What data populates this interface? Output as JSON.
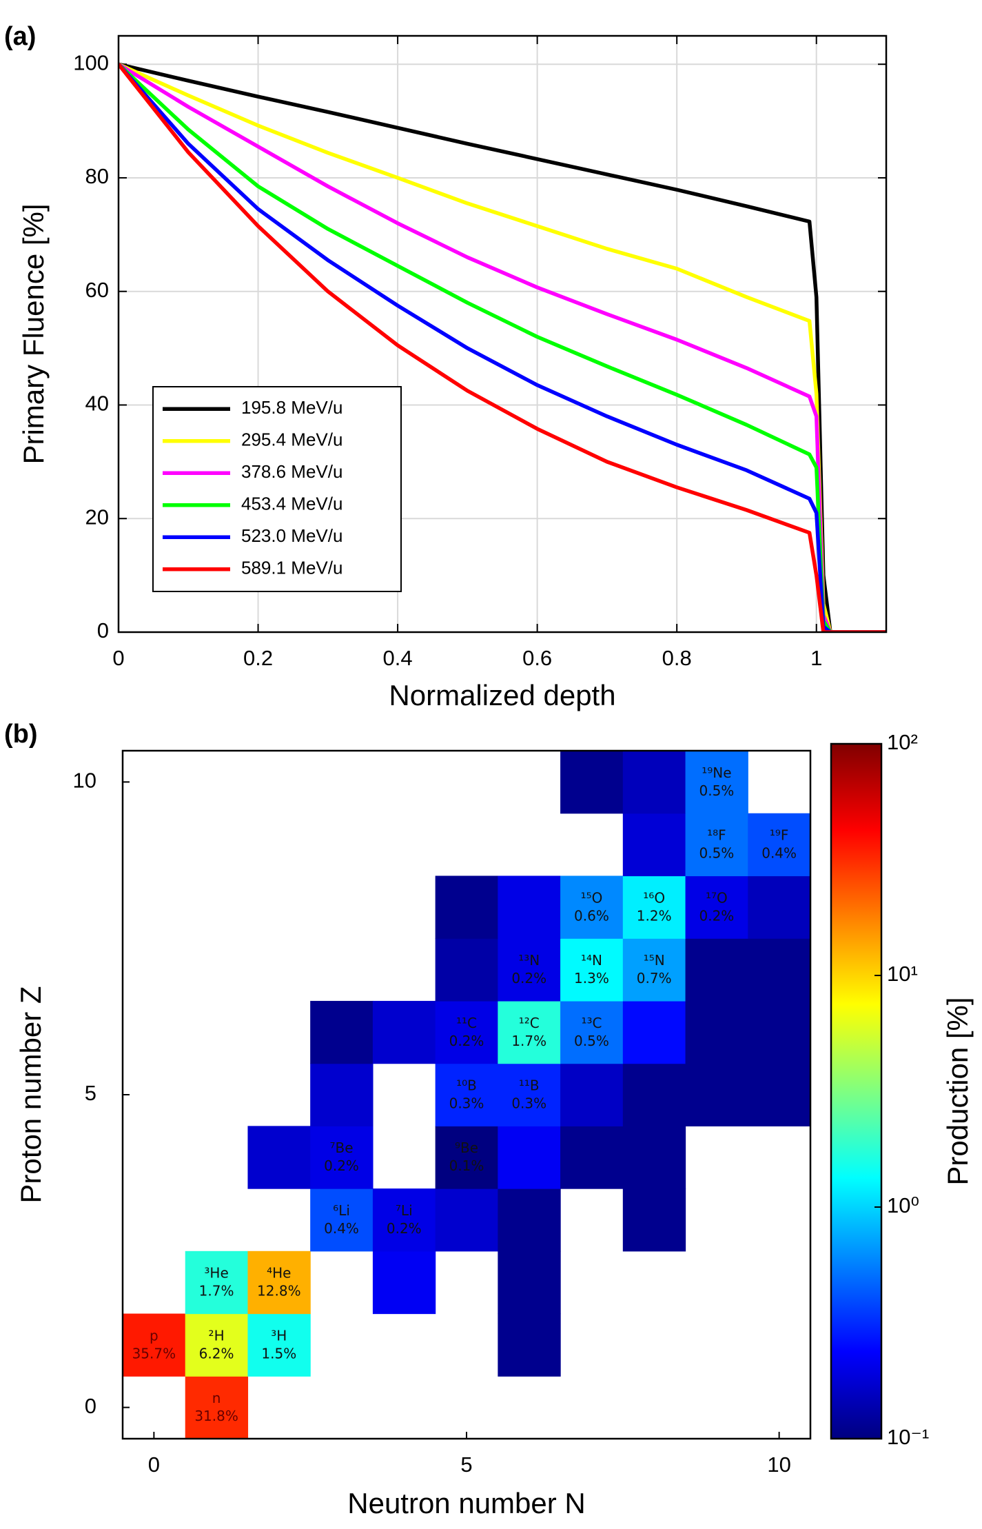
{
  "chart_data": [
    {
      "type": "line",
      "panel_label": "(a)",
      "x_label": "Normalized depth",
      "y_label": "Primary Fluence [%]",
      "x": [
        0,
        0.1,
        0.2,
        0.3,
        0.4,
        0.5,
        0.6,
        0.7,
        0.8,
        0.9,
        0.99,
        1.0,
        1.01,
        1.02,
        1.1
      ],
      "series": [
        {
          "name": "195.8 MeV/u",
          "color": "#000000",
          "values": [
            100,
            97.1,
            94.3,
            91.6,
            88.8,
            86,
            83.3,
            80.6,
            77.9,
            75,
            72.3,
            59,
            10,
            0,
            0
          ]
        },
        {
          "name": "295.4 MeV/u",
          "color": "#ffff00",
          "values": [
            100,
            94.5,
            89.2,
            84.4,
            80,
            75.5,
            71.5,
            67.5,
            64,
            59,
            54.8,
            42,
            5,
            0,
            0
          ]
        },
        {
          "name": "378.6 MeV/u",
          "color": "#ff00ff",
          "values": [
            100,
            92.5,
            85.5,
            78.5,
            72,
            66,
            60.7,
            56,
            51.5,
            46.5,
            41.5,
            38,
            3,
            0,
            0
          ]
        },
        {
          "name": "453.4 MeV/u",
          "color": "#00ff00",
          "values": [
            100,
            88.5,
            78.5,
            71,
            64.5,
            58,
            52,
            46.8,
            41.8,
            36.5,
            31.3,
            29,
            2,
            0,
            0
          ]
        },
        {
          "name": "523.0 MeV/u",
          "color": "#0000ff",
          "values": [
            100,
            86,
            74.5,
            65.5,
            57.5,
            50,
            43.5,
            38,
            33,
            28.5,
            23.5,
            21,
            1,
            0,
            0
          ]
        },
        {
          "name": "589.1 MeV/u",
          "color": "#ff0000",
          "values": [
            100,
            84.5,
            71.5,
            60,
            50.5,
            42.5,
            35.8,
            30,
            25.5,
            21.5,
            17.5,
            10,
            0,
            0,
            0
          ]
        }
      ],
      "xlim": [
        0,
        1.1
      ],
      "xticks": [
        0,
        0.2,
        0.4,
        0.6,
        0.8,
        1
      ],
      "ylim": [
        0,
        105
      ],
      "yticks": [
        0,
        20,
        40,
        60,
        80,
        100
      ],
      "grid": true,
      "legend": "lower left"
    },
    {
      "type": "heatmap",
      "panel_label": "(b)",
      "x_label": "Neutron number N",
      "y_label": "Proton number Z",
      "colorbar_label": "Production [%]",
      "colormap": "jet",
      "log_color": true,
      "clim": [
        0.1,
        100
      ],
      "cticks": [
        {
          "value": 0.1,
          "label": "10⁻¹"
        },
        {
          "value": 1,
          "label": "10⁰"
        },
        {
          "value": 10,
          "label": "10¹"
        },
        {
          "value": 100,
          "label": "10²"
        }
      ],
      "xlim": [
        -0.5,
        10.5
      ],
      "xticks": [
        0,
        5,
        10
      ],
      "ylim": [
        -0.5,
        10.5
      ],
      "yticks": [
        0,
        5,
        10
      ],
      "cells": [
        {
          "n": 1,
          "z": 0,
          "value": 31.8,
          "nuclide": "n",
          "value_label": "31.8%"
        },
        {
          "n": 0,
          "z": 1,
          "value": 35.7,
          "nuclide": "p",
          "value_label": "35.7%"
        },
        {
          "n": 1,
          "z": 1,
          "value": 6.2,
          "nuclide": "²H",
          "value_label": "6.2%"
        },
        {
          "n": 2,
          "z": 1,
          "value": 1.5,
          "nuclide": "³H",
          "value_label": "1.5%"
        },
        {
          "n": 6,
          "z": 1,
          "value": 0.11
        },
        {
          "n": 1,
          "z": 2,
          "value": 1.7,
          "nuclide": "³He",
          "value_label": "1.7%"
        },
        {
          "n": 2,
          "z": 2,
          "value": 12.8,
          "nuclide": "⁴He",
          "value_label": "12.8%"
        },
        {
          "n": 4,
          "z": 2,
          "value": 0.22
        },
        {
          "n": 6,
          "z": 2,
          "value": 0.11
        },
        {
          "n": 3,
          "z": 3,
          "value": 0.4,
          "nuclide": "⁶Li",
          "value_label": "0.4%"
        },
        {
          "n": 4,
          "z": 3,
          "value": 0.2,
          "nuclide": "⁷Li",
          "value_label": "0.2%"
        },
        {
          "n": 5,
          "z": 3,
          "value": 0.17
        },
        {
          "n": 6,
          "z": 3,
          "value": 0.11
        },
        {
          "n": 8,
          "z": 3,
          "value": 0.11
        },
        {
          "n": 2,
          "z": 4,
          "value": 0.17
        },
        {
          "n": 3,
          "z": 4,
          "value": 0.2,
          "nuclide": "⁷Be",
          "value_label": "0.2%"
        },
        {
          "n": 5,
          "z": 4,
          "value": 0.1,
          "nuclide": "⁹Be",
          "value_label": "0.1%"
        },
        {
          "n": 6,
          "z": 4,
          "value": 0.22
        },
        {
          "n": 7,
          "z": 4,
          "value": 0.11
        },
        {
          "n": 8,
          "z": 4,
          "value": 0.11
        },
        {
          "n": 3,
          "z": 5,
          "value": 0.17
        },
        {
          "n": 5,
          "z": 5,
          "value": 0.3,
          "nuclide": "¹⁰B",
          "value_label": "0.3%"
        },
        {
          "n": 6,
          "z": 5,
          "value": 0.3,
          "nuclide": "¹¹B",
          "value_label": "0.3%"
        },
        {
          "n": 7,
          "z": 5,
          "value": 0.16
        },
        {
          "n": 8,
          "z": 5,
          "value": 0.11
        },
        {
          "n": 9,
          "z": 5,
          "value": 0.11
        },
        {
          "n": 10,
          "z": 5,
          "value": 0.11
        },
        {
          "n": 3,
          "z": 6,
          "value": 0.11
        },
        {
          "n": 4,
          "z": 6,
          "value": 0.17
        },
        {
          "n": 5,
          "z": 6,
          "value": 0.2,
          "nuclide": "¹¹C",
          "value_label": "0.2%"
        },
        {
          "n": 6,
          "z": 6,
          "value": 1.7,
          "nuclide": "¹²C",
          "value_label": "1.7%"
        },
        {
          "n": 7,
          "z": 6,
          "value": 0.5,
          "nuclide": "¹³C",
          "value_label": "0.5%"
        },
        {
          "n": 8,
          "z": 6,
          "value": 0.25
        },
        {
          "n": 9,
          "z": 6,
          "value": 0.11
        },
        {
          "n": 10,
          "z": 6,
          "value": 0.11
        },
        {
          "n": 5,
          "z": 7,
          "value": 0.13
        },
        {
          "n": 6,
          "z": 7,
          "value": 0.2,
          "nuclide": "¹³N",
          "value_label": "0.2%"
        },
        {
          "n": 7,
          "z": 7,
          "value": 1.3,
          "nuclide": "¹⁴N",
          "value_label": "1.3%"
        },
        {
          "n": 8,
          "z": 7,
          "value": 0.7,
          "nuclide": "¹⁵N",
          "value_label": "0.7%"
        },
        {
          "n": 9,
          "z": 7,
          "value": 0.11
        },
        {
          "n": 10,
          "z": 7,
          "value": 0.11
        },
        {
          "n": 5,
          "z": 8,
          "value": 0.11
        },
        {
          "n": 6,
          "z": 8,
          "value": 0.2
        },
        {
          "n": 7,
          "z": 8,
          "value": 0.6,
          "nuclide": "¹⁵O",
          "value_label": "0.6%"
        },
        {
          "n": 8,
          "z": 8,
          "value": 1.2,
          "nuclide": "¹⁶O",
          "value_label": "1.2%"
        },
        {
          "n": 9,
          "z": 8,
          "value": 0.2,
          "nuclide": "¹⁷O",
          "value_label": "0.2%"
        },
        {
          "n": 10,
          "z": 8,
          "value": 0.15
        },
        {
          "n": 8,
          "z": 9,
          "value": 0.18
        },
        {
          "n": 9,
          "z": 9,
          "value": 0.5,
          "nuclide": "¹⁸F",
          "value_label": "0.5%"
        },
        {
          "n": 10,
          "z": 9,
          "value": 0.4,
          "nuclide": "¹⁹F",
          "value_label": "0.4%"
        },
        {
          "n": 7,
          "z": 10,
          "value": 0.11
        },
        {
          "n": 8,
          "z": 10,
          "value": 0.15
        },
        {
          "n": 9,
          "z": 10,
          "value": 0.5,
          "nuclide": "¹⁹Ne",
          "value_label": "0.5%"
        }
      ]
    }
  ]
}
